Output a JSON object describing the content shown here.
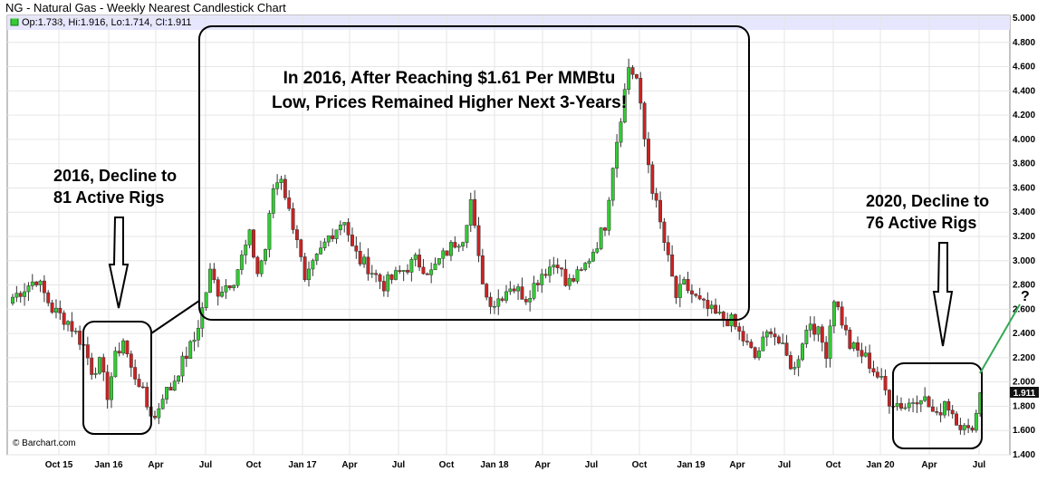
{
  "chart_data": {
    "type": "candlestick",
    "title": "NG - Natural Gas - Weekly Nearest Candlestick Chart",
    "legend": "Op:1.738, Hi:1.916, Lo:1.714, Cl:1.911",
    "credit": "© Barchart.com",
    "last_price_label": "1.911",
    "ylim": [
      1.4,
      5.0
    ],
    "y_ticks": [
      "5.000",
      "4.800",
      "4.600",
      "4.400",
      "4.200",
      "4.000",
      "3.800",
      "3.600",
      "3.400",
      "3.200",
      "3.000",
      "2.800",
      "2.600",
      "2.400",
      "2.200",
      "2.000",
      "1.800",
      "1.600",
      "1.400"
    ],
    "x_ticks": [
      "Oct 15",
      "Jan 16",
      "Apr",
      "Jul",
      "Oct",
      "Jan 17",
      "Apr",
      "Jul",
      "Oct",
      "Jan 18",
      "Apr",
      "Jul",
      "Oct",
      "Jan 19",
      "Apr",
      "Jul",
      "Oct",
      "Jan 20",
      "Apr",
      "Jul"
    ],
    "price_path": [
      [
        0,
        2.7
      ],
      [
        6,
        2.85
      ],
      [
        10,
        2.6
      ],
      [
        14,
        2.5
      ],
      [
        18,
        2.3
      ],
      [
        20,
        2.1
      ],
      [
        22,
        2.15
      ],
      [
        24,
        1.9
      ],
      [
        26,
        2.2
      ],
      [
        28,
        2.35
      ],
      [
        30,
        2.1
      ],
      [
        32,
        2.0
      ],
      [
        34,
        1.8
      ],
      [
        36,
        1.7
      ],
      [
        38,
        1.9
      ],
      [
        40,
        1.95
      ],
      [
        42,
        2.1
      ],
      [
        46,
        2.35
      ],
      [
        48,
        2.6
      ],
      [
        50,
        2.9
      ],
      [
        52,
        2.75
      ],
      [
        56,
        2.85
      ],
      [
        60,
        3.2
      ],
      [
        62,
        2.9
      ],
      [
        64,
        3.1
      ],
      [
        66,
        3.6
      ],
      [
        68,
        3.7
      ],
      [
        70,
        3.4
      ],
      [
        72,
        3.2
      ],
      [
        74,
        2.8
      ],
      [
        76,
        2.95
      ],
      [
        80,
        3.2
      ],
      [
        84,
        3.35
      ],
      [
        86,
        3.1
      ],
      [
        88,
        3.0
      ],
      [
        90,
        2.95
      ],
      [
        94,
        2.8
      ],
      [
        98,
        2.9
      ],
      [
        102,
        3.0
      ],
      [
        106,
        2.9
      ],
      [
        108,
        3.0
      ],
      [
        112,
        3.15
      ],
      [
        114,
        3.2
      ],
      [
        116,
        3.5
      ],
      [
        118,
        3.0
      ],
      [
        120,
        2.7
      ],
      [
        122,
        2.65
      ],
      [
        126,
        2.8
      ],
      [
        130,
        2.7
      ],
      [
        134,
        2.9
      ],
      [
        138,
        3.0
      ],
      [
        140,
        2.8
      ],
      [
        144,
        2.9
      ],
      [
        148,
        3.15
      ],
      [
        150,
        3.3
      ],
      [
        152,
        3.8
      ],
      [
        154,
        4.2
      ],
      [
        156,
        4.6
      ],
      [
        158,
        4.5
      ],
      [
        160,
        4.0
      ],
      [
        162,
        3.6
      ],
      [
        164,
        3.3
      ],
      [
        166,
        3.0
      ],
      [
        168,
        2.7
      ],
      [
        170,
        2.8
      ],
      [
        174,
        2.65
      ],
      [
        178,
        2.55
      ],
      [
        182,
        2.5
      ],
      [
        186,
        2.3
      ],
      [
        188,
        2.2
      ],
      [
        192,
        2.45
      ],
      [
        196,
        2.2
      ],
      [
        198,
        2.1
      ],
      [
        200,
        2.35
      ],
      [
        202,
        2.5
      ],
      [
        204,
        2.4
      ],
      [
        206,
        2.25
      ],
      [
        208,
        2.7
      ],
      [
        210,
        2.5
      ],
      [
        212,
        2.3
      ],
      [
        216,
        2.2
      ],
      [
        220,
        2.0
      ],
      [
        222,
        1.85
      ],
      [
        226,
        1.8
      ],
      [
        230,
        1.9
      ],
      [
        234,
        1.7
      ],
      [
        236,
        1.85
      ],
      [
        240,
        1.65
      ],
      [
        242,
        1.58
      ],
      [
        244,
        1.738
      ],
      [
        245,
        1.911
      ]
    ],
    "annotations": [
      {
        "text": [
          "2016, Decline to",
          "81 Active Rigs"
        ]
      },
      {
        "text": [
          "In 2016, After Reaching $1.61 Per MMBtu",
          "Low, Prices Remained Higher Next 3-Years!"
        ]
      },
      {
        "text": [
          "2020, Decline to",
          "76 Active Rigs"
        ]
      },
      {
        "text": [
          "?"
        ]
      }
    ],
    "colors": {
      "up": "#33cc33",
      "down": "#cc2222",
      "plot_bg": "#ffffff",
      "highlight_band": "#e6e6ff",
      "trend_line": "#33aa55",
      "question_mark": "#33aa55"
    }
  }
}
